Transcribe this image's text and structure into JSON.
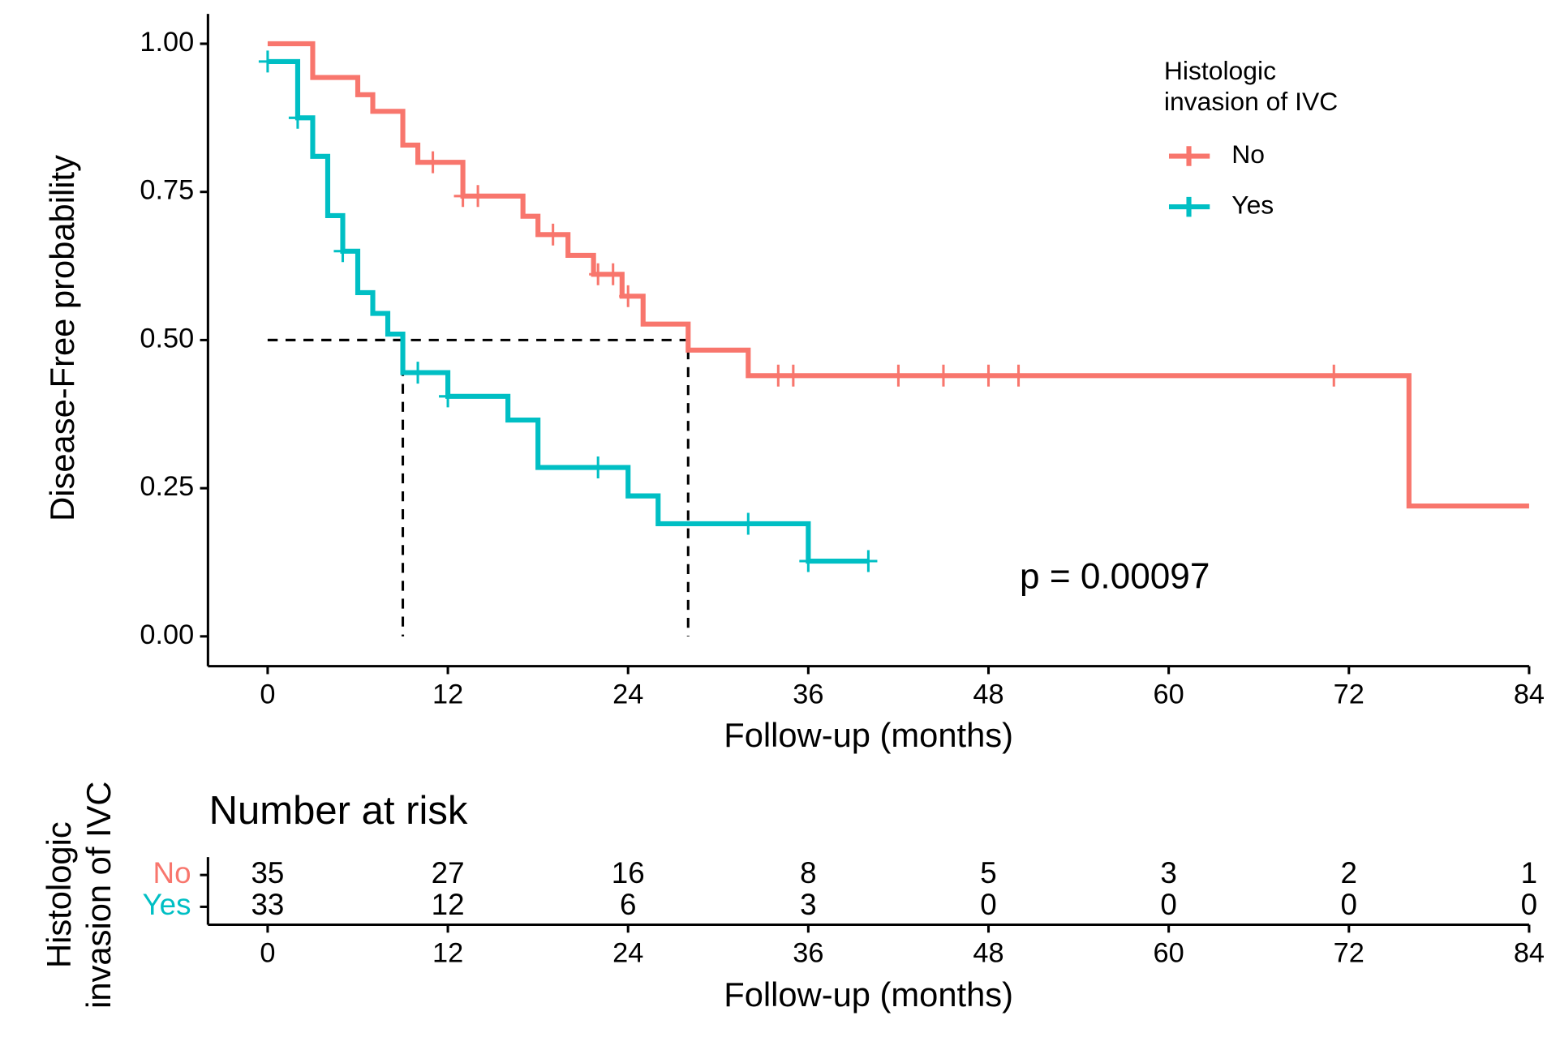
{
  "chart_data": {
    "type": "step",
    "xlabel": "Follow-up (months)",
    "ylabel": "Disease-Free probability",
    "xlim": [
      0,
      84
    ],
    "ylim": [
      0,
      1
    ],
    "xticks": [
      0,
      12,
      24,
      36,
      48,
      60,
      72,
      84
    ],
    "yticks": [
      {
        "value": 0,
        "label": "0.00"
      },
      {
        "value": 0.25,
        "label": "0.25"
      },
      {
        "value": 0.5,
        "label": "0.50"
      },
      {
        "value": 0.75,
        "label": "0.75"
      },
      {
        "value": 1,
        "label": "1.00"
      }
    ],
    "legend_title": [
      "Histologic",
      "invasion of IVC"
    ],
    "legend": "top-right",
    "series": [
      {
        "name": "No",
        "color": "#F8766D",
        "x": [
          0,
          3,
          6,
          7,
          9,
          10,
          13,
          17,
          18,
          20,
          21.7,
          23.6,
          25,
          28,
          32,
          76,
          84
        ],
        "values": [
          1,
          0.943,
          0.914,
          0.886,
          0.829,
          0.8,
          0.743,
          0.709,
          0.678,
          0.643,
          0.611,
          0.574,
          0.527,
          0.483,
          0.44,
          0.22,
          0.22
        ],
        "censor_x": [
          11,
          13,
          14,
          19,
          22,
          23,
          24,
          34,
          35,
          42,
          45,
          48,
          50,
          71
        ],
        "censor_y": [
          0.8,
          0.743,
          0.743,
          0.678,
          0.611,
          0.611,
          0.574,
          0.44,
          0.44,
          0.44,
          0.44,
          0.44,
          0.44,
          0.44
        ]
      },
      {
        "name": "Yes",
        "color": "#00BFC4",
        "x": [
          0,
          2,
          3,
          4,
          5,
          6,
          7,
          8,
          9,
          12,
          16,
          18,
          24,
          26,
          36,
          40
        ],
        "values": [
          0.97,
          0.875,
          0.81,
          0.71,
          0.65,
          0.58,
          0.545,
          0.51,
          0.445,
          0.405,
          0.365,
          0.285,
          0.237,
          0.19,
          0.127,
          0.127
        ],
        "censor_x": [
          0,
          2,
          5,
          10,
          12,
          22,
          32,
          36,
          40
        ],
        "censor_y": [
          0.97,
          0.875,
          0.65,
          0.445,
          0.405,
          0.285,
          0.19,
          0.127,
          0.127
        ]
      }
    ],
    "median_lines": [
      {
        "x": 9,
        "y": 0.5
      },
      {
        "x": 28,
        "y": 0.5
      }
    ],
    "annotation": "p = 0.00097",
    "risk_table": {
      "title": "Number at risk",
      "ylabel": [
        "Histologic",
        "invasion of IVC"
      ],
      "xlabel": "Follow-up (months)",
      "times": [
        0,
        12,
        24,
        36,
        48,
        60,
        72,
        84
      ],
      "rows": [
        {
          "name": "No",
          "color": "#F8766D",
          "values": [
            35,
            27,
            16,
            8,
            5,
            3,
            2,
            1
          ]
        },
        {
          "name": "Yes",
          "color": "#00BFC4",
          "values": [
            33,
            12,
            6,
            3,
            0,
            0,
            0,
            0
          ]
        }
      ]
    }
  }
}
